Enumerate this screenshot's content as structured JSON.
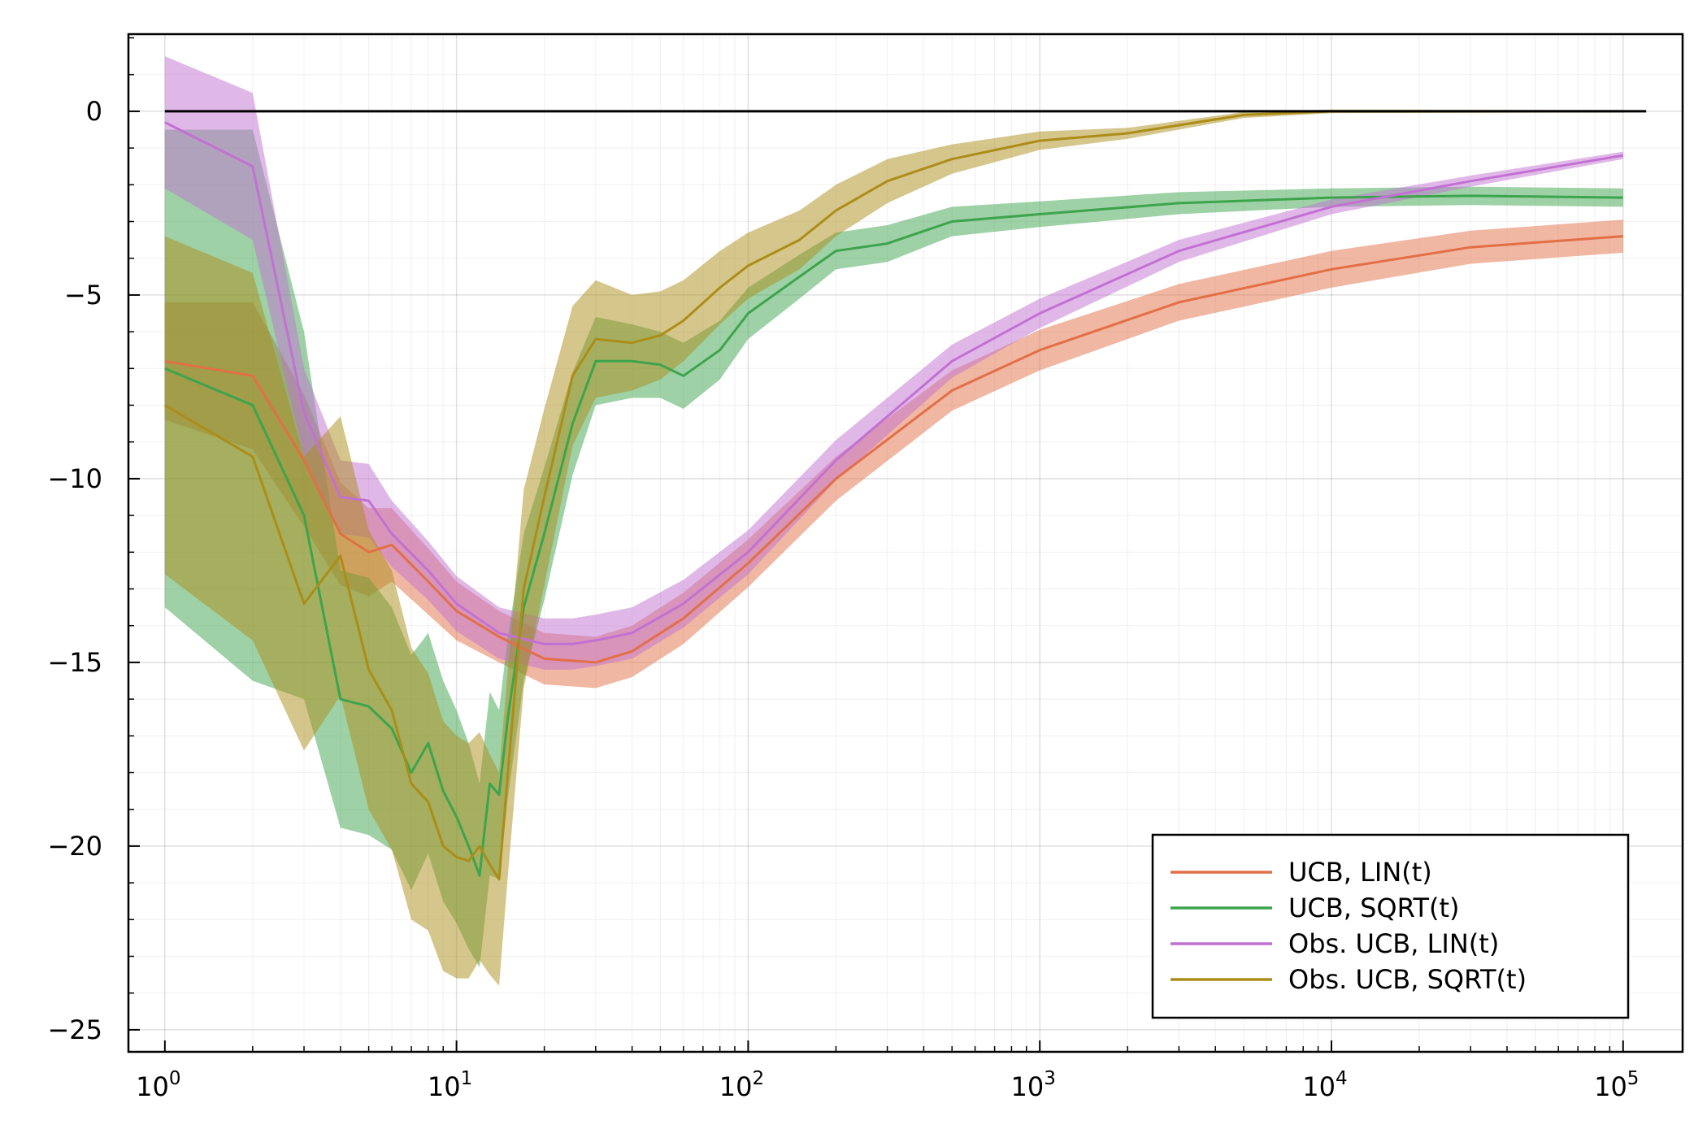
{
  "chart_data": {
    "type": "line",
    "title": "",
    "xlabel": "",
    "ylabel": "",
    "x_scale": "log10",
    "xlim": [
      0.75,
      160000
    ],
    "ylim": [
      -25.6,
      2.1
    ],
    "x_ticks": [
      {
        "value": 1,
        "base": "10",
        "exp": "0"
      },
      {
        "value": 10,
        "base": "10",
        "exp": "1"
      },
      {
        "value": 100,
        "base": "10",
        "exp": "2"
      },
      {
        "value": 1000,
        "base": "10",
        "exp": "3"
      },
      {
        "value": 10000,
        "base": "10",
        "exp": "4"
      },
      {
        "value": 100000,
        "base": "10",
        "exp": "5"
      }
    ],
    "y_ticks": [
      {
        "value": 0,
        "label": "0"
      },
      {
        "value": -5,
        "label": "−5"
      },
      {
        "value": -10,
        "label": "−10"
      },
      {
        "value": -15,
        "label": "−15"
      },
      {
        "value": -20,
        "label": "−20"
      },
      {
        "value": -25,
        "label": "−25"
      }
    ],
    "grid": true,
    "legend_position": "bottom-right",
    "reference_line": {
      "y": 0,
      "color": "#000000"
    },
    "series": [
      {
        "name": "UCB, LIN(t)",
        "color": "#e26f46",
        "x": [
          1,
          2,
          3,
          4,
          5,
          6,
          8,
          10,
          14,
          20,
          30,
          40,
          60,
          100,
          200,
          500,
          1000,
          3000,
          10000,
          30000,
          100000
        ],
        "y": [
          -6.8,
          -7.2,
          -9.5,
          -11.5,
          -12.0,
          -11.8,
          -12.8,
          -13.6,
          -14.3,
          -14.9,
          -15.0,
          -14.7,
          -13.8,
          -12.3,
          -10.0,
          -7.6,
          -6.5,
          -5.2,
          -4.3,
          -3.7,
          -3.4
        ],
        "band": [
          1.6,
          2.0,
          1.8,
          1.4,
          1.2,
          1.0,
          0.9,
          0.8,
          0.7,
          0.7,
          0.7,
          0.7,
          0.7,
          0.65,
          0.6,
          0.55,
          0.55,
          0.5,
          0.5,
          0.45,
          0.45
        ]
      },
      {
        "name": "UCB, SQRT(t)",
        "color": "#3da44d",
        "x": [
          1,
          2,
          3,
          4,
          5,
          6,
          7,
          8,
          9,
          10,
          11,
          12,
          13,
          14,
          15,
          17,
          20,
          25,
          30,
          40,
          50,
          60,
          80,
          100,
          150,
          200,
          300,
          500,
          1000,
          3000,
          10000,
          30000,
          100000
        ],
        "y": [
          -7.0,
          -8.0,
          -11.0,
          -16.0,
          -16.2,
          -16.8,
          -18.0,
          -17.2,
          -18.5,
          -19.2,
          -20.0,
          -20.8,
          -18.3,
          -18.6,
          -16.5,
          -13.5,
          -11.5,
          -8.5,
          -6.8,
          -6.8,
          -6.9,
          -7.2,
          -6.5,
          -5.5,
          -4.5,
          -3.8,
          -3.6,
          -3.0,
          -2.8,
          -2.5,
          -2.35,
          -2.3,
          -2.35
        ],
        "band": [
          6.5,
          7.5,
          5.0,
          3.5,
          3.5,
          3.3,
          3.2,
          3.0,
          3.0,
          2.9,
          2.8,
          2.5,
          2.5,
          2.3,
          2.2,
          2.0,
          1.8,
          1.4,
          1.2,
          1.0,
          0.9,
          0.9,
          0.8,
          0.7,
          0.6,
          0.5,
          0.5,
          0.4,
          0.35,
          0.3,
          0.25,
          0.25,
          0.25
        ]
      },
      {
        "name": "Obs. UCB, LIN(t)",
        "color": "#c271d2",
        "x": [
          1,
          2,
          3,
          4,
          5,
          6,
          8,
          10,
          14,
          20,
          25,
          30,
          40,
          60,
          100,
          200,
          500,
          1000,
          3000,
          10000,
          30000,
          100000
        ],
        "y": [
          -0.3,
          -1.5,
          -8.2,
          -10.5,
          -10.6,
          -11.5,
          -12.5,
          -13.4,
          -14.2,
          -14.5,
          -14.5,
          -14.4,
          -14.2,
          -13.4,
          -12.0,
          -9.5,
          -6.8,
          -5.5,
          -3.8,
          -2.6,
          -1.9,
          -1.2
        ],
        "band": [
          1.8,
          2.0,
          1.2,
          1.0,
          1.0,
          0.9,
          0.8,
          0.75,
          0.7,
          0.7,
          0.7,
          0.7,
          0.7,
          0.65,
          0.6,
          0.55,
          0.45,
          0.4,
          0.3,
          0.2,
          0.15,
          0.1
        ]
      },
      {
        "name": "Obs. UCB, SQRT(t)",
        "color": "#ac8d18",
        "x": [
          1,
          2,
          3,
          4,
          5,
          6,
          7,
          8,
          9,
          10,
          11,
          12,
          13,
          14,
          15,
          17,
          20,
          25,
          30,
          40,
          50,
          60,
          80,
          100,
          150,
          200,
          300,
          500,
          1000,
          2000,
          5000,
          10000,
          100000
        ],
        "y": [
          -8.0,
          -9.4,
          -13.4,
          -12.1,
          -15.2,
          -16.3,
          -18.3,
          -18.8,
          -20.0,
          -20.3,
          -20.4,
          -20.0,
          -20.5,
          -20.9,
          -18.0,
          -13.0,
          -10.5,
          -7.2,
          -6.2,
          -6.3,
          -6.1,
          -5.7,
          -4.8,
          -4.2,
          -3.5,
          -2.7,
          -1.9,
          -1.3,
          -0.8,
          -0.6,
          -0.1,
          0.0,
          0.0
        ],
        "band": [
          4.6,
          5.0,
          4.0,
          3.8,
          3.8,
          3.8,
          3.7,
          3.5,
          3.4,
          3.3,
          3.2,
          3.1,
          3.0,
          2.9,
          2.8,
          2.7,
          2.4,
          1.9,
          1.6,
          1.3,
          1.2,
          1.1,
          1.0,
          0.9,
          0.8,
          0.7,
          0.6,
          0.4,
          0.25,
          0.15,
          0.08,
          0.05,
          0.03
        ]
      }
    ]
  }
}
